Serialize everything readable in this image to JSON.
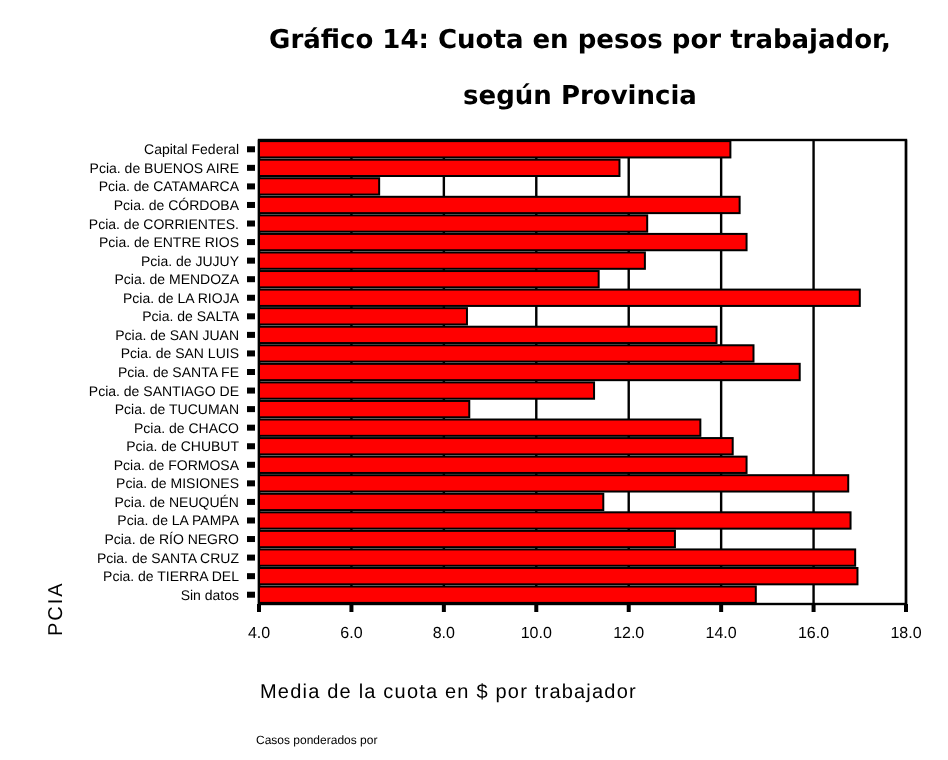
{
  "chart_data": {
    "type": "bar",
    "orientation": "horizontal",
    "title": "Gráfico  14: Cuota en pesos por trabajador,",
    "subtitle": "según Provincia",
    "xlabel": "Media de la cuota en $ por trabajador",
    "ylabel": "PCIA",
    "categories": [
      "Capital Federal",
      "Pcia. de BUENOS AIRE",
      "Pcia. de CATAMARCA",
      "Pcia. de CÓRDOBA",
      "Pcia. de CORRIENTES.",
      "Pcia. de ENTRE RIOS",
      "Pcia. de JUJUY",
      "Pcia. de MENDOZA",
      "Pcia. de LA RIOJA",
      "Pcia. de SALTA",
      "Pcia. de SAN JUAN",
      "Pcia. de SAN LUIS",
      "Pcia. de SANTA FE",
      "Pcia. de SANTIAGO DE",
      "Pcia. de TUCUMAN",
      "Pcia. de CHACO",
      "Pcia. de CHUBUT",
      "Pcia. de FORMOSA",
      "Pcia. de MISIONES",
      "Pcia. de NEUQUÉN",
      "Pcia. de LA PAMPA",
      "Pcia. de RÍO NEGRO",
      "Pcia. de SANTA CRUZ",
      "Pcia. de TIERRA DEL",
      "Sin datos"
    ],
    "values": [
      14.2,
      11.8,
      6.6,
      14.4,
      12.4,
      14.55,
      12.35,
      11.35,
      17.0,
      8.5,
      13.9,
      14.7,
      15.7,
      11.25,
      8.55,
      13.55,
      14.25,
      14.55,
      16.75,
      11.45,
      16.8,
      13.0,
      16.9,
      16.95,
      14.75
    ],
    "color": "#ff0000",
    "xlim": [
      4,
      18
    ],
    "xticks": [
      {
        "value": 4,
        "label": "4.0"
      },
      {
        "value": 6,
        "label": "6.0"
      },
      {
        "value": 8,
        "label": "8.0"
      },
      {
        "value": 10,
        "label": "10.0"
      },
      {
        "value": 12,
        "label": "12.0"
      },
      {
        "value": 14,
        "label": "14.0"
      },
      {
        "value": 16,
        "label": "16.0"
      },
      {
        "value": 18,
        "label": "18.0"
      }
    ],
    "grid": "x",
    "annotations": [
      "Casos ponderados por"
    ]
  }
}
